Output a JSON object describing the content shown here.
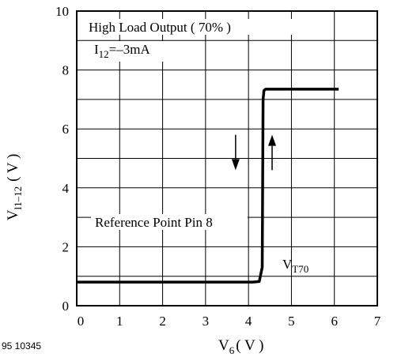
{
  "chart_data": {
    "type": "line",
    "x_axis": {
      "label_main": "V",
      "label_sub": "6",
      "label_unit": "( V )",
      "range": [
        0,
        7
      ],
      "ticks": [
        "0",
        "1",
        "2",
        "3",
        "4",
        "5",
        "6",
        "7"
      ]
    },
    "y_axis": {
      "label_main": "V",
      "label_sub": "l1–12",
      "label_unit": "( V )",
      "range": [
        0,
        10
      ],
      "ticks": [
        "0",
        "2",
        "4",
        "6",
        "8",
        "10"
      ]
    },
    "grid": true,
    "series": [
      {
        "color": "#000000",
        "x": [
          0,
          4.1,
          4.25,
          4.32,
          4.34,
          4.36,
          4.4,
          6.1
        ],
        "y": [
          0.8,
          0.8,
          0.82,
          1.3,
          7.0,
          7.3,
          7.35,
          7.35
        ]
      }
    ],
    "annotations": {
      "title_line1": "High Load Output ( 70% )",
      "title_line2_main": "I",
      "title_line2_sub": "12",
      "title_line2_rest": "=–3mA",
      "reference": "Reference Point Pin 8",
      "threshold_main": "V",
      "threshold_sub": "T70"
    },
    "arrows": [
      {
        "direction": "down",
        "x": 3.7,
        "y_from": 5.8,
        "y_to": 4.6
      },
      {
        "direction": "up",
        "x": 4.55,
        "y_from": 4.6,
        "y_to": 5.8
      }
    ],
    "figure_id": "95 10345"
  }
}
